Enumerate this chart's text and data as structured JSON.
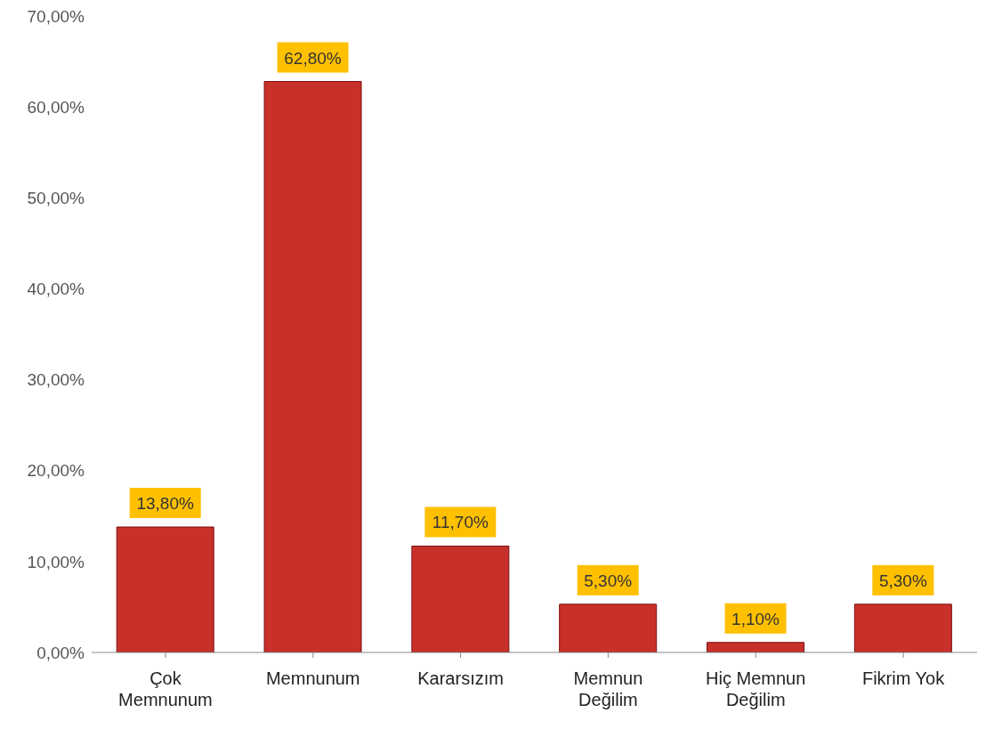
{
  "chart_data": {
    "type": "bar",
    "categories": [
      "Çok Memnunum",
      "Memnunum",
      "Kararsızım",
      "Memnun Değilim",
      "Hiç Memnun Değilim",
      "Fikrim Yok"
    ],
    "values": [
      13.8,
      62.8,
      11.7,
      5.3,
      1.1,
      5.3
    ],
    "value_labels": [
      "13,80%",
      "62,80%",
      "11,70%",
      "5,30%",
      "1,10%",
      "5,30%"
    ],
    "color": "#c8302a",
    "ylim": [
      0,
      70
    ],
    "yticks": [
      {
        "value": 0,
        "label": "0,00%"
      },
      {
        "value": 10,
        "label": "10,00%"
      },
      {
        "value": 20,
        "label": "20,00%"
      },
      {
        "value": 30,
        "label": "30,00%"
      },
      {
        "value": 40,
        "label": "40,00%"
      },
      {
        "value": 50,
        "label": "50,00%"
      },
      {
        "value": 60,
        "label": "60,00%"
      },
      {
        "value": 70,
        "label": "70,00%"
      }
    ],
    "grid": false
  }
}
